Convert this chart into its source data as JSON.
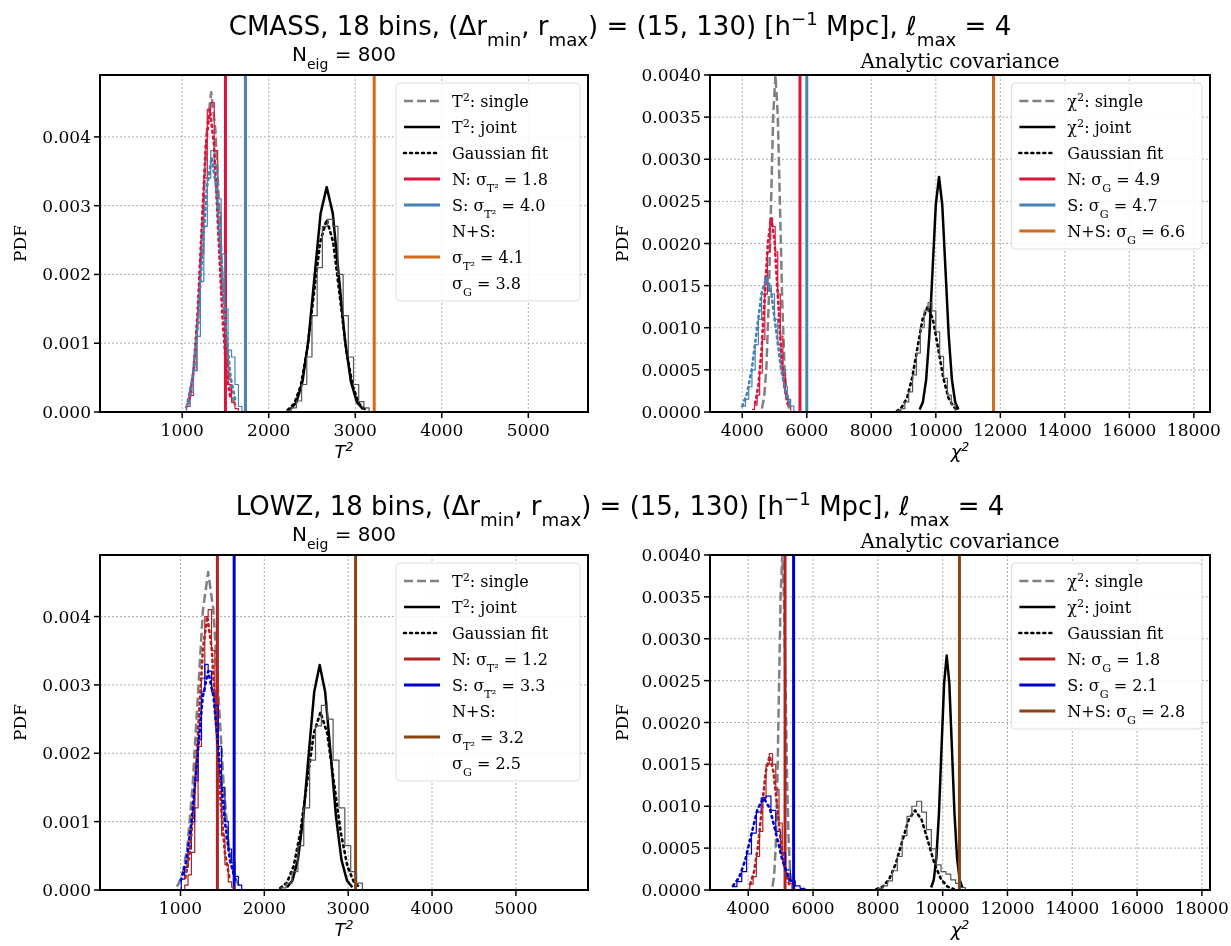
{
  "chart_data": [
    {
      "type": "line",
      "title": "CMASS, 18 bins, (Δr$_{min}$, r$_{max}$) = (15, 130) [h$^{−1}$ Mpc], ℓ$_{max}$ = 4",
      "subtitle": "N$_{eig}$ = 800",
      "xlabel": "T$^{2}$",
      "ylabel": "PDF",
      "xlim": [
        50,
        5690
      ],
      "ylim": [
        0,
        0.0049
      ],
      "xticks": [
        1000,
        2000,
        3000,
        4000,
        5000
      ],
      "yticks": [
        {
          "value": 0,
          "label": "0.000"
        },
        {
          "value": 0.001,
          "label": "0.001"
        },
        {
          "value": 0.002,
          "label": "0.002"
        },
        {
          "value": 0.003,
          "label": "0.003"
        },
        {
          "value": 0.004,
          "label": "0.004"
        }
      ],
      "grid": true,
      "legend": "top right",
      "marker": "none",
      "series": [
        {
          "name": "T$^{2}$: single",
          "type": "line",
          "line_style": "dashed",
          "color": "#808080",
          "x": [
            1041,
            1090,
            1139,
            1188,
            1237,
            1286,
            1335,
            1384,
            1433,
            1482,
            1531,
            1580,
            1629
          ],
          "values": [
            5e-05,
            0.0002,
            0.00063,
            0.00151,
            0.00282,
            0.0041,
            0.00465,
            0.0041,
            0.00282,
            0.00151,
            0.00063,
            0.0002,
            5e-05
          ]
        },
        {
          "name": "T$^{2}$: joint",
          "type": "line",
          "line_style": "solid",
          "color": "#000000",
          "x": [
            2250,
            2320,
            2390,
            2460,
            2530,
            2600,
            2670,
            2740,
            2810,
            2880,
            2950,
            3020,
            3090
          ],
          "values": [
            4e-05,
            0.00014,
            0.00044,
            0.00106,
            0.00198,
            0.00289,
            0.00327,
            0.00289,
            0.00198,
            0.00106,
            0.00044,
            0.00014,
            4e-05
          ]
        },
        {
          "name": "Gaussian fit",
          "type": "line",
          "line_style": "dotted",
          "color": "#000000",
          "x": [
            2220,
            2295,
            2370,
            2445,
            2520,
            2595,
            2670,
            2745,
            2820,
            2895,
            2970,
            3045,
            3120
          ],
          "values": [
            3e-05,
            0.00012,
            0.00038,
            0.00091,
            0.0017,
            0.00247,
            0.0028,
            0.00247,
            0.0017,
            0.00091,
            0.00038,
            0.00012,
            3e-05
          ]
        },
        {
          "name": "N: σ$_{T²}$ = 1.8",
          "type": "line",
          "line_style": "solid",
          "color": "#dc143c",
          "x": [
            1500,
            1500
          ],
          "values": [
            0,
            0.0049
          ]
        },
        {
          "name": "S: σ$_{T²}$ = 4.0",
          "type": "line",
          "line_style": "solid",
          "color": "#4682b4",
          "x": [
            1731,
            1731
          ],
          "values": [
            0,
            0.0049
          ]
        },
        {
          "name": "N+S:\nσ$_{T²}$ = 4.1\nσ$_{G}$ = 3.8",
          "type": "line",
          "line_style": "solid",
          "color": "#d2691e",
          "x": [
            3219,
            3219
          ],
          "values": [
            0,
            0.0049
          ]
        },
        {
          "type": "step",
          "color": "#dc143c",
          "x": [
            1010,
            1050,
            1090,
            1130,
            1170,
            1210,
            1250,
            1290,
            1330,
            1370,
            1410,
            1450,
            1490,
            1530,
            1570,
            1610,
            1650
          ],
          "values": [
            0,
            8e-05,
            0.00024,
            0.0006,
            0.0013,
            0.0023,
            0.0034,
            0.0044,
            0.0045,
            0.0038,
            0.0029,
            0.0017,
            0.0009,
            0.0004,
            0.00014,
            5e-05,
            0
          ]
        },
        {
          "type": "step",
          "color": "#4682b4",
          "x": [
            1010,
            1050,
            1090,
            1130,
            1170,
            1210,
            1250,
            1290,
            1330,
            1370,
            1410,
            1450,
            1490,
            1530,
            1570,
            1610,
            1650,
            1690
          ],
          "values": [
            0,
            0.00012,
            0.00029,
            0.0006,
            0.0011,
            0.0019,
            0.0027,
            0.0034,
            0.0038,
            0.0036,
            0.0031,
            0.0023,
            0.0015,
            0.0009,
            0.0008,
            0.0004,
            8e-05,
            0
          ]
        },
        {
          "type": "step",
          "color": "#555555",
          "x": [
            2200,
            2260,
            2320,
            2380,
            2440,
            2500,
            2560,
            2620,
            2680,
            2740,
            2800,
            2860,
            2920,
            2980,
            3040,
            3100,
            3160
          ],
          "values": [
            2e-05,
            6e-05,
            0.00016,
            0.0004,
            0.0008,
            0.0014,
            0.0021,
            0.0027,
            0.0028,
            0.0027,
            0.002,
            0.0014,
            0.0008,
            0.0004,
            0.00015,
            6e-05,
            0
          ]
        },
        {
          "type": "line",
          "line_style": "dotted",
          "color": "#dc143c",
          "x": [
            1083,
            1130,
            1178,
            1225,
            1273,
            1320,
            1368,
            1415,
            1463,
            1510,
            1558
          ],
          "values": [
            0.00019,
            0.00059,
            0.00143,
            0.00267,
            0.00388,
            0.0044,
            0.00388,
            0.00267,
            0.00143,
            0.00059,
            0.00019
          ]
        },
        {
          "type": "line",
          "line_style": "dotted",
          "color": "#4682b4",
          "x": [
            1065,
            1120,
            1175,
            1230,
            1285,
            1340,
            1395,
            1450,
            1505,
            1560,
            1615
          ],
          "values": [
            0.00016,
            0.0005,
            0.0012,
            0.00225,
            0.00326,
            0.0037,
            0.00326,
            0.00225,
            0.0012,
            0.0005,
            0.00016
          ]
        }
      ]
    },
    {
      "type": "line",
      "title": "Analytic covariance",
      "xlabel": "χ$^{2}$",
      "ylabel": "PDF",
      "xlim": [
        3000,
        18500
      ],
      "ylim": [
        0,
        0.004
      ],
      "xticks": [
        4000,
        6000,
        8000,
        10000,
        12000,
        14000,
        16000,
        18000
      ],
      "yticks": [
        {
          "value": 0,
          "label": "0.0000"
        },
        {
          "value": 0.0005,
          "label": "0.0005"
        },
        {
          "value": 0.001,
          "label": "0.0010"
        },
        {
          "value": 0.0015,
          "label": "0.0015"
        },
        {
          "value": 0.002,
          "label": "0.0020"
        },
        {
          "value": 0.0025,
          "label": "0.0025"
        },
        {
          "value": 0.003,
          "label": "0.0030"
        },
        {
          "value": 0.0035,
          "label": "0.0035"
        },
        {
          "value": 0.004,
          "label": "0.0040"
        }
      ],
      "grid": true,
      "legend": "top right",
      "marker": "none",
      "series": [
        {
          "name": "χ$^{2}$: single",
          "type": "line",
          "line_style": "dashed",
          "color": "#808080",
          "x": [
            4610,
            4680,
            4750,
            4820,
            4890,
            4960,
            5030,
            5100,
            5170,
            5240,
            5310,
            5380,
            5450
          ],
          "values": [
            4e-05,
            0.00018,
            0.00054,
            0.0013,
            0.00243,
            0.00353,
            0.004,
            0.00353,
            0.00243,
            0.0013,
            0.00054,
            0.00018,
            4e-05
          ]
        },
        {
          "name": "χ$^{2}$: joint",
          "type": "line",
          "line_style": "solid",
          "color": "#000000",
          "x": [
            9500,
            9600,
            9700,
            9800,
            9900,
            10000,
            10100,
            10200,
            10300,
            10400,
            10500,
            10600,
            10700
          ],
          "values": [
            3e-05,
            0.00012,
            0.00038,
            0.00091,
            0.00169,
            0.00246,
            0.00279,
            0.00246,
            0.00169,
            0.00091,
            0.00038,
            0.00012,
            3e-05
          ]
        },
        {
          "name": "Gaussian fit",
          "type": "line",
          "line_style": "dotted",
          "color": "#000000",
          "x": [
            8790,
            8950,
            9110,
            9270,
            9430,
            9590,
            9750,
            9910,
            10070,
            10230,
            10390,
            10550,
            10710
          ],
          "values": [
            1e-05,
            6e-05,
            0.00017,
            0.00041,
            0.00076,
            0.0011,
            0.00125,
            0.0011,
            0.00076,
            0.00041,
            0.00017,
            6e-05,
            1e-05
          ]
        },
        {
          "name": "N: σ$_{G}$ = 4.9",
          "type": "line",
          "line_style": "solid",
          "color": "#dc143c",
          "x": [
            5789,
            5789
          ],
          "values": [
            0,
            0.004
          ]
        },
        {
          "name": "S: σ$_{G}$ = 4.7",
          "type": "line",
          "line_style": "solid",
          "color": "#4682b4",
          "x": [
            6000,
            6000
          ],
          "values": [
            0,
            0.004
          ]
        },
        {
          "name": "N+S: σ$_{G}$ = 6.6",
          "type": "line",
          "line_style": "solid",
          "color": "#d2691e",
          "x": [
            11789,
            11789
          ],
          "values": [
            0,
            0.004
          ]
        },
        {
          "type": "step",
          "color": "#dc143c",
          "x": [
            4300,
            4380,
            4460,
            4540,
            4620,
            4700,
            4780,
            4860,
            4940,
            5020,
            5100,
            5180,
            5260,
            5340,
            5420,
            5500
          ],
          "values": [
            3e-05,
            8e-05,
            0.0002,
            0.00046,
            0.00086,
            0.0014,
            0.0019,
            0.0023,
            0.0022,
            0.0019,
            0.0014,
            0.0009,
            0.00046,
            0.0002,
            8e-05,
            0
          ]
        },
        {
          "type": "step",
          "color": "#4682b4",
          "x": [
            4000,
            4100,
            4200,
            4300,
            4400,
            4500,
            4600,
            4700,
            4800,
            4900,
            5000,
            5100,
            5200,
            5300,
            5400,
            5500,
            5600
          ],
          "values": [
            7e-05,
            0.00015,
            0.0003,
            0.0005,
            0.0008,
            0.0011,
            0.0014,
            0.0016,
            0.0015,
            0.0014,
            0.0011,
            0.0008,
            0.0005,
            0.0003,
            0.00015,
            7e-05,
            0
          ]
        },
        {
          "type": "step",
          "color": "#555555",
          "x": [
            8800,
            8920,
            9040,
            9160,
            9280,
            9400,
            9520,
            9640,
            9760,
            9880,
            10000,
            10120,
            10240,
            10360,
            10480,
            10600
          ],
          "values": [
            2e-05,
            4e-05,
            0.00012,
            0.00024,
            0.00044,
            0.0007,
            0.001,
            0.0012,
            0.0013,
            0.0012,
            0.00095,
            0.00066,
            0.0004,
            0.0002,
            9e-05,
            0
          ]
        },
        {
          "type": "line",
          "line_style": "dotted",
          "color": "#dc143c",
          "x": [
            4400,
            4500,
            4600,
            4700,
            4800,
            4900,
            5000,
            5100,
            5200,
            5300,
            5400
          ],
          "values": [
            0.0001,
            0.00031,
            0.00075,
            0.0014,
            0.00203,
            0.0023,
            0.00203,
            0.0014,
            0.00075,
            0.00031,
            0.0001
          ]
        },
        {
          "type": "line",
          "line_style": "dotted",
          "color": "#4682b4",
          "x": [
            4000,
            4150,
            4300,
            4450,
            4600,
            4750,
            4900,
            5050,
            5200,
            5350,
            5500
          ],
          "values": [
            7e-05,
            0.00022,
            0.00052,
            0.00097,
            0.00141,
            0.0016,
            0.00141,
            0.00097,
            0.00052,
            0.00022,
            7e-05
          ]
        }
      ]
    },
    {
      "type": "line",
      "title": "LOWZ, 18 bins, (Δr$_{min}$, r$_{max}$) = (15, 130) [h$^{−1}$ Mpc], ℓ$_{max}$ = 4",
      "subtitle": "N$_{eig}$ = 800",
      "xlabel": "T$^{2}$",
      "ylabel": "PDF",
      "xlim": [
        40,
        5860
      ],
      "ylim": [
        0,
        0.0049
      ],
      "xticks": [
        1000,
        2000,
        3000,
        4000,
        5000
      ],
      "yticks": [
        {
          "value": 0,
          "label": "0.000"
        },
        {
          "value": 0.001,
          "label": "0.001"
        },
        {
          "value": 0.002,
          "label": "0.002"
        },
        {
          "value": 0.003,
          "label": "0.003"
        },
        {
          "value": 0.004,
          "label": "0.004"
        }
      ],
      "grid": true,
      "legend": "top right",
      "marker": "none",
      "series": [
        {
          "name": "T$^{2}$: single",
          "type": "line",
          "line_style": "dashed",
          "color": "#808080",
          "x": [
            958,
            1020,
            1082,
            1144,
            1206,
            1268,
            1330,
            1392,
            1454,
            1516,
            1578,
            1640,
            1702
          ],
          "values": [
            5e-05,
            0.0002,
            0.00063,
            0.00151,
            0.00282,
            0.0041,
            0.00465,
            0.0041,
            0.00282,
            0.00151,
            0.00063,
            0.0002,
            5e-05
          ]
        },
        {
          "name": "T$^{2}$: joint",
          "type": "line",
          "line_style": "solid",
          "color": "#000000",
          "x": [
            2270,
            2335,
            2400,
            2465,
            2530,
            2595,
            2660,
            2725,
            2790,
            2855,
            2920,
            2985,
            3050
          ],
          "values": [
            4e-05,
            0.00014,
            0.00044,
            0.00107,
            0.002,
            0.0029,
            0.00329,
            0.0029,
            0.002,
            0.00107,
            0.00044,
            0.00014,
            4e-05
          ]
        },
        {
          "name": "Gaussian fit",
          "type": "line",
          "line_style": "dotted",
          "color": "#000000",
          "x": [
            2190,
            2270,
            2350,
            2430,
            2510,
            2590,
            2670,
            2750,
            2830,
            2910,
            2990,
            3070,
            3150
          ],
          "values": [
            3e-05,
            0.00011,
            0.00035,
            0.00085,
            0.00158,
            0.00229,
            0.0026,
            0.00229,
            0.00158,
            0.00085,
            0.00035,
            0.00011,
            3e-05
          ]
        },
        {
          "name": "N: σ$_{T²}$ = 1.2",
          "type": "line",
          "line_style": "solid",
          "color": "#b22222",
          "x": [
            1440,
            1440
          ],
          "values": [
            0,
            0.0049
          ]
        },
        {
          "name": "S: σ$_{T²}$ = 3.3",
          "type": "line",
          "line_style": "solid",
          "color": "#0000cd",
          "x": [
            1640,
            1640
          ],
          "values": [
            0,
            0.0049
          ]
        },
        {
          "name": "N+S:\nσ$_{T²}$ = 3.2\nσ$_{G}$ = 2.5",
          "type": "line",
          "line_style": "solid",
          "color": "#8b4513",
          "x": [
            3088,
            3088
          ],
          "values": [
            0,
            0.0049
          ]
        },
        {
          "type": "step",
          "color": "#b22222",
          "x": [
            1010,
            1050,
            1090,
            1130,
            1170,
            1210,
            1250,
            1290,
            1330,
            1370,
            1410,
            1450,
            1490,
            1530,
            1570,
            1610,
            1650
          ],
          "values": [
            0,
            7e-05,
            0.00022,
            0.00055,
            0.0012,
            0.0021,
            0.0031,
            0.004,
            0.0041,
            0.0035,
            0.0026,
            0.0016,
            0.0008,
            0.00037,
            0.00012,
            4e-05,
            0
          ]
        },
        {
          "type": "step",
          "color": "#0000cd",
          "x": [
            970,
            1010,
            1050,
            1090,
            1130,
            1170,
            1210,
            1250,
            1290,
            1330,
            1370,
            1410,
            1450,
            1490,
            1530,
            1570,
            1610,
            1650,
            1690,
            1730
          ],
          "values": [
            0,
            0.00016,
            0.00033,
            0.0006,
            0.001,
            0.0016,
            0.0022,
            0.0029,
            0.0033,
            0.0032,
            0.0029,
            0.0027,
            0.0021,
            0.0015,
            0.001,
            0.0006,
            0.0004,
            0.0002,
            7e-05,
            0
          ]
        },
        {
          "type": "step",
          "color": "#555555",
          "x": [
            2190,
            2260,
            2330,
            2400,
            2470,
            2540,
            2610,
            2680,
            2750,
            2820,
            2890,
            2960,
            3030,
            3100,
            3170
          ],
          "values": [
            3e-05,
            0.0001,
            0.00027,
            0.00065,
            0.0012,
            0.0019,
            0.0024,
            0.0027,
            0.0025,
            0.0019,
            0.0012,
            0.00065,
            0.00027,
            0.0001,
            0
          ]
        },
        {
          "type": "line",
          "line_style": "dotted",
          "color": "#b22222",
          "x": [
            1058,
            1110,
            1163,
            1215,
            1268,
            1320,
            1373,
            1425,
            1478,
            1530,
            1583
          ],
          "values": [
            0.00018,
            0.00054,
            0.0013,
            0.00243,
            0.00353,
            0.004,
            0.00353,
            0.00243,
            0.0013,
            0.00054,
            0.00018
          ]
        },
        {
          "type": "line",
          "line_style": "dotted",
          "color": "#0000cd",
          "x": [
            1005,
            1070,
            1135,
            1200,
            1265,
            1330,
            1395,
            1460,
            1525,
            1590,
            1655
          ],
          "values": [
            0.00014,
            0.00043,
            0.00104,
            0.00194,
            0.00282,
            0.0032,
            0.00282,
            0.00194,
            0.00104,
            0.00043,
            0.00014
          ]
        }
      ]
    },
    {
      "type": "line",
      "title": "Analytic covariance",
      "xlabel": "χ$^{2}$",
      "ylabel": "PDF",
      "xlim": [
        2820,
        18250
      ],
      "ylim": [
        0,
        0.004
      ],
      "xticks": [
        4000,
        6000,
        8000,
        10000,
        12000,
        14000,
        16000,
        18000
      ],
      "yticks": [
        {
          "value": 0,
          "label": "0.0000"
        },
        {
          "value": 0.0005,
          "label": "0.0005"
        },
        {
          "value": 0.001,
          "label": "0.0010"
        },
        {
          "value": 0.0015,
          "label": "0.0015"
        },
        {
          "value": 0.002,
          "label": "0.0020"
        },
        {
          "value": 0.0025,
          "label": "0.0025"
        },
        {
          "value": 0.003,
          "label": "0.0030"
        },
        {
          "value": 0.0035,
          "label": "0.0035"
        },
        {
          "value": 0.004,
          "label": "0.0040"
        }
      ],
      "grid": true,
      "legend": "top right",
      "marker": "none",
      "series": [
        {
          "name": "χ$^{2}$: single",
          "type": "line",
          "line_style": "dashed",
          "color": "#808080",
          "x": [
            4750,
            4800,
            4850,
            4900,
            4950,
            5000,
            5050,
            5100,
            5150,
            5200,
            5250,
            5300,
            5350
          ],
          "values": [
            4e-05,
            0.00018,
            0.00054,
            0.0013,
            0.00243,
            0.00353,
            0.004,
            0.00353,
            0.00243,
            0.0013,
            0.00054,
            0.00018,
            4e-05
          ]
        },
        {
          "name": "χ$^{2}$: joint",
          "type": "line",
          "line_style": "solid",
          "color": "#000000",
          "x": [
            9645,
            9725,
            9805,
            9885,
            9965,
            10045,
            10125,
            10205,
            10285,
            10365,
            10445,
            10525,
            10605
          ],
          "values": [
            3e-05,
            0.00012,
            0.00038,
            0.00091,
            0.0017,
            0.00247,
            0.0028,
            0.00247,
            0.0017,
            0.00091,
            0.00038,
            0.00012,
            3e-05
          ]
        },
        {
          "name": "Gaussian fit",
          "type": "line",
          "line_style": "dotted",
          "color": "#000000",
          "x": [
            7950,
            8150,
            8350,
            8550,
            8750,
            8950,
            9150,
            9350,
            9550,
            9750,
            9950,
            10150,
            10350
          ],
          "values": [
            1e-05,
            4e-05,
            0.00013,
            0.00031,
            0.00058,
            0.00084,
            0.00095,
            0.00084,
            0.00058,
            0.00031,
            0.00013,
            4e-05,
            1e-05
          ]
        },
        {
          "name": "N: σ$_{G}$ = 1.8",
          "type": "line",
          "line_style": "solid",
          "color": "#b22222",
          "x": [
            5136,
            5136
          ],
          "values": [
            0,
            0.004
          ]
        },
        {
          "name": "S: σ$_{G}$ = 2.1",
          "type": "line",
          "line_style": "solid",
          "color": "#0000cd",
          "x": [
            5400,
            5400
          ],
          "values": [
            0,
            0.004
          ]
        },
        {
          "name": "N+S: σ$_{G}$ = 2.8",
          "type": "line",
          "line_style": "solid",
          "color": "#8b4513",
          "x": [
            10518,
            10518
          ],
          "values": [
            0,
            0.004
          ]
        },
        {
          "type": "step",
          "color": "#b22222",
          "x": [
            3950,
            4050,
            4150,
            4250,
            4350,
            4450,
            4550,
            4650,
            4750,
            4850,
            4950,
            5050,
            5150,
            5250,
            5350
          ],
          "values": [
            0,
            7e-05,
            0.00016,
            0.0004,
            0.0007,
            0.0011,
            0.0015,
            0.00163,
            0.0015,
            0.0012,
            0.0008,
            0.00044,
            0.0002,
            8e-05,
            0
          ]
        },
        {
          "type": "step",
          "color": "#0000cd",
          "x": [
            3500,
            3650,
            3800,
            3950,
            4100,
            4250,
            4400,
            4550,
            4700,
            4850,
            5000,
            5150,
            5300,
            5450,
            5600,
            5750
          ],
          "values": [
            4e-05,
            0.0001,
            0.00022,
            0.00043,
            0.00068,
            0.00093,
            0.0011,
            0.00112,
            0.00095,
            0.0007,
            0.00044,
            0.00024,
            0.00011,
            5e-05,
            2e-05,
            0
          ]
        },
        {
          "type": "step",
          "color": "#555555",
          "x": [
            8000,
            8150,
            8300,
            8450,
            8600,
            8750,
            8900,
            9050,
            9200,
            9350,
            9500,
            9650,
            9800,
            9950,
            10100,
            10250,
            10400,
            10550,
            10700
          ],
          "values": [
            2e-05,
            5e-05,
            0.00011,
            0.00023,
            0.0004,
            0.00065,
            0.00088,
            0.001,
            0.00106,
            0.00093,
            0.00072,
            0.00049,
            0.0003,
            0.00022,
            0.00019,
            0.00012,
            8e-05,
            3e-05,
            0
          ]
        },
        {
          "type": "line",
          "line_style": "dotted",
          "color": "#b22222",
          "x": [
            4060,
            4180,
            4300,
            4420,
            4540,
            4660,
            4780,
            4900,
            5020,
            5140,
            5260
          ],
          "values": [
            7e-05,
            0.00022,
            0.00052,
            0.00097,
            0.00141,
            0.0016,
            0.00141,
            0.00097,
            0.00052,
            0.00022,
            7e-05
          ]
        },
        {
          "type": "line",
          "line_style": "dotted",
          "color": "#0000cd",
          "x": [
            3530,
            3720,
            3910,
            4100,
            4290,
            4480,
            4670,
            4860,
            5050,
            5240,
            5430
          ],
          "values": [
            5e-05,
            0.00015,
            0.00036,
            0.00067,
            0.00097,
            0.0011,
            0.00097,
            0.00067,
            0.00036,
            0.00015,
            5e-05
          ]
        }
      ]
    }
  ]
}
